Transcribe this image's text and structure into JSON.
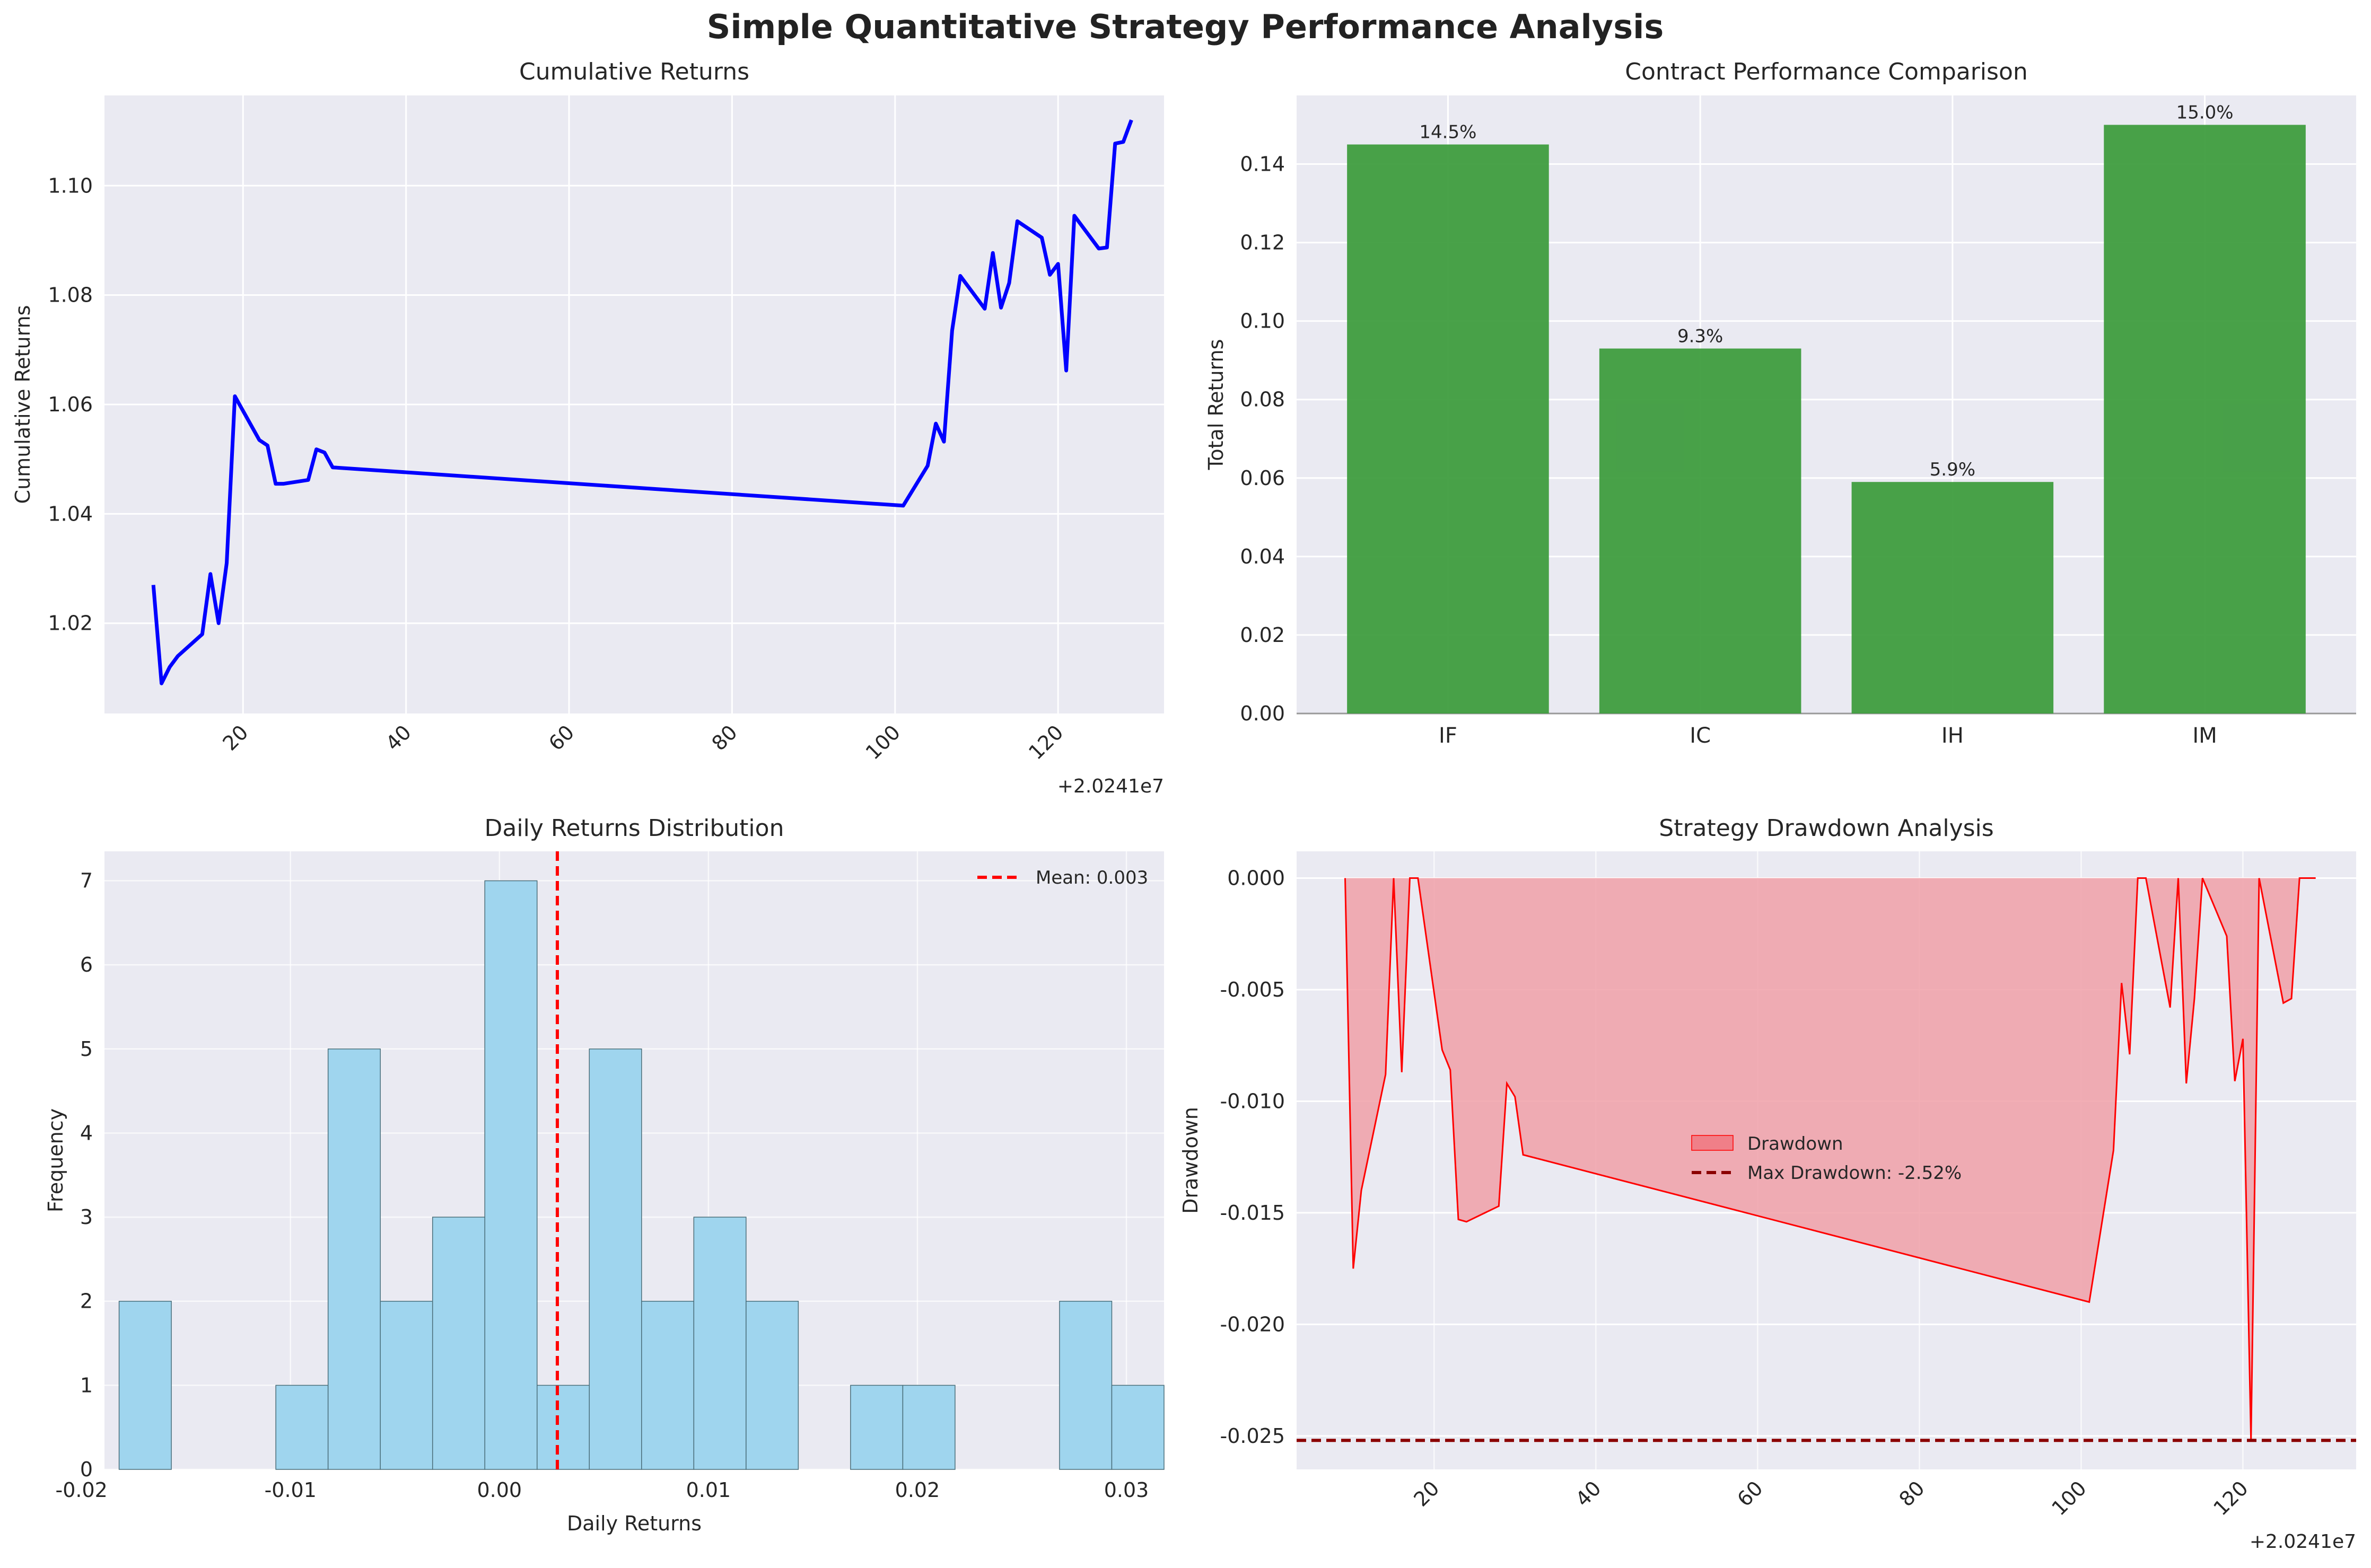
{
  "suptitle": "Simple Quantitative Strategy Performance Analysis",
  "colors": {
    "panel_bg": "#eaeaf2",
    "grid": "#ffffff",
    "cum_line": "#0000ff",
    "bar": "#3a9a3a",
    "hist": "#9fd5ee",
    "hist_edge": "#4a6e7a",
    "mean_line": "#ff0000",
    "dd_fill": "#f0a0a8",
    "dd_line": "#ff0000",
    "max_dd_line": "#8b0000"
  },
  "chart_data": [
    {
      "type": "line",
      "title": "Cumulative Returns",
      "xlabel": "",
      "ylabel": "Cumulative Returns",
      "x_offset_label": "+2.0241e7",
      "xlim": [
        3,
        133
      ],
      "ylim": [
        1.0035,
        1.1165
      ],
      "xticks": [
        20,
        40,
        60,
        80,
        100,
        120
      ],
      "yticks": [
        1.02,
        1.04,
        1.06,
        1.08,
        1.1
      ],
      "ytick_labels": [
        "1.02",
        "1.04",
        "1.06",
        "1.08",
        "1.10"
      ],
      "grid": true,
      "series": [
        {
          "x": [
            9,
            10,
            11,
            12,
            15,
            16,
            17,
            18,
            19,
            22,
            23,
            24,
            25,
            28,
            29,
            30,
            31,
            101,
            104,
            105,
            106,
            107,
            108,
            111,
            112,
            113,
            114,
            115,
            118,
            119,
            120,
            121,
            122,
            125,
            126,
            127,
            128,
            129
          ],
          "y": [
            1.027,
            1.009,
            1.012,
            1.014,
            1.018,
            1.029,
            1.02,
            1.031,
            1.0615,
            1.0535,
            1.0525,
            1.0455,
            1.0455,
            1.0462,
            1.0518,
            1.0512,
            1.0485,
            1.0415,
            1.0488,
            1.0565,
            1.0532,
            1.0735,
            1.0835,
            1.0775,
            1.0877,
            1.0777,
            1.0822,
            1.0935,
            1.0905,
            1.0837,
            1.0857,
            1.0662,
            1.0945,
            1.0885,
            1.0887,
            1.1077,
            1.108,
            1.112
          ]
        }
      ]
    },
    {
      "type": "bar",
      "title": "Contract Performance Comparison",
      "xlabel": "",
      "ylabel": "Total Returns",
      "categories": [
        "IF",
        "IC",
        "IH",
        "IM"
      ],
      "values": [
        0.145,
        0.093,
        0.059,
        0.15
      ],
      "data_labels": [
        "14.5%",
        "9.3%",
        "5.9%",
        "15.0%"
      ],
      "ylim": [
        0,
        0.1575
      ],
      "yticks": [
        0.0,
        0.02,
        0.04,
        0.06,
        0.08,
        0.1,
        0.12,
        0.14
      ],
      "ytick_labels": [
        "0.00",
        "0.02",
        "0.04",
        "0.06",
        "0.08",
        "0.10",
        "0.12",
        "0.14"
      ],
      "grid": true
    },
    {
      "type": "histogram",
      "title": "Daily Returns Distribution",
      "xlabel": "Daily Returns",
      "ylabel": "Frequency",
      "bin_start": -0.0182,
      "bin_width": 0.0025,
      "counts": [
        2,
        0,
        0,
        1,
        5,
        2,
        3,
        7,
        1,
        5,
        2,
        3,
        2,
        0,
        1,
        1,
        0,
        0,
        2,
        1
      ],
      "xlim": [
        -0.0189,
        0.0318
      ],
      "ylim": [
        0,
        7.35
      ],
      "xticks": [
        -0.02,
        -0.01,
        0.0,
        0.01,
        0.02,
        0.03
      ],
      "xtick_labels": [
        "-0.02",
        "-0.01",
        "0.00",
        "0.01",
        "0.02",
        "0.03"
      ],
      "yticks": [
        0,
        1,
        2,
        3,
        4,
        5,
        6,
        7
      ],
      "mean": 0.003,
      "mean_x": 0.00277,
      "legend": [
        {
          "label": "Mean: 0.003",
          "style": "dashed-red"
        }
      ],
      "legend_position": "top-right",
      "grid": true
    },
    {
      "type": "area",
      "title": "Strategy Drawdown Analysis",
      "xlabel": "",
      "ylabel": "Drawdown",
      "x_offset_label": "+2.0241e7",
      "xlim": [
        3,
        134
      ],
      "ylim": [
        -0.0265,
        0.0012
      ],
      "xticks": [
        20,
        40,
        60,
        80,
        100,
        120
      ],
      "yticks": [
        0.0,
        -0.005,
        -0.01,
        -0.015,
        -0.02,
        -0.025
      ],
      "ytick_labels": [
        "0.000",
        "-0.005",
        "-0.010",
        "-0.015",
        "-0.020",
        "-0.025"
      ],
      "series": [
        {
          "name": "Drawdown",
          "x": [
            9,
            10,
            11,
            14,
            15,
            16,
            17,
            18,
            21,
            22,
            23,
            24,
            28,
            29,
            30,
            31,
            101,
            104,
            105,
            106,
            107,
            108,
            111,
            112,
            113,
            114,
            115,
            118,
            119,
            120,
            121,
            122,
            125,
            126,
            127,
            128,
            129
          ],
          "y": [
            0.0,
            -0.0175,
            -0.014,
            -0.0088,
            0.0,
            -0.0087,
            0.0,
            0.0,
            -0.0077,
            -0.0086,
            -0.0153,
            -0.0154,
            -0.0147,
            -0.0092,
            -0.0098,
            -0.0124,
            -0.019,
            -0.0122,
            -0.0047,
            -0.0079,
            0.0,
            0.0,
            -0.0058,
            0.0,
            -0.0092,
            -0.0054,
            0.0,
            -0.0026,
            -0.0091,
            -0.0072,
            -0.0252,
            0.0,
            -0.0056,
            -0.0054,
            0.0,
            0.0,
            0.0
          ]
        }
      ],
      "max_drawdown": -0.0252,
      "legend": [
        {
          "label": "Drawdown",
          "style": "fill"
        },
        {
          "label": "Max Drawdown: -2.52%",
          "style": "dashed-darkred"
        }
      ],
      "legend_position": "center",
      "grid": true
    }
  ]
}
